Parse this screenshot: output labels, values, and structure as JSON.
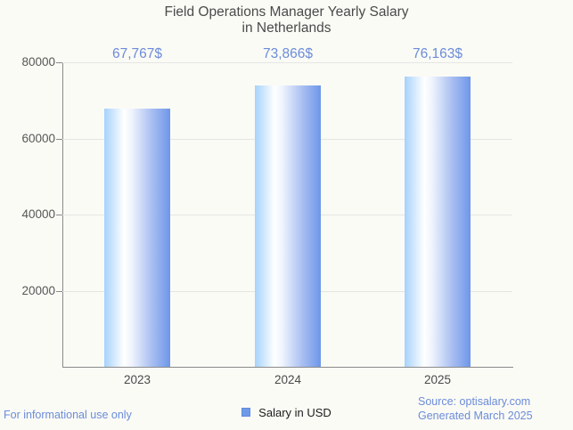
{
  "title": {
    "line1": "Field Operations Manager Yearly Salary",
    "line2": "in Netherlands"
  },
  "chart_data": {
    "type": "bar",
    "categories": [
      "2023",
      "2024",
      "2025"
    ],
    "series": [
      {
        "name": "Salary in USD",
        "values": [
          67767,
          73866,
          76163
        ]
      }
    ],
    "value_labels": [
      "67,767$",
      "73,866$",
      "76,163$"
    ],
    "title": "Field Operations Manager Yearly Salary in Netherlands",
    "xlabel": "",
    "ylabel": "",
    "ylim": [
      0,
      80000
    ],
    "yticks": [
      20000,
      40000,
      60000,
      80000
    ],
    "grid": true,
    "legend_position": "bottom",
    "bar_color_gradient": [
      "#a6d2fb",
      "#ffffff",
      "#6e96e9"
    ]
  },
  "legend": {
    "label": "Salary in USD",
    "swatch_color": "#6f9ae8"
  },
  "footer": {
    "left": "For informational use only",
    "source": "Source: optisalary.com",
    "generated": "Generated March 2025"
  },
  "colors": {
    "accent_blue": "#6b8cd9",
    "title_gray": "#4a4a4a",
    "background": "#fbfbf6",
    "gridline": "#e4e4e4",
    "axis": "#8a8a8a"
  }
}
